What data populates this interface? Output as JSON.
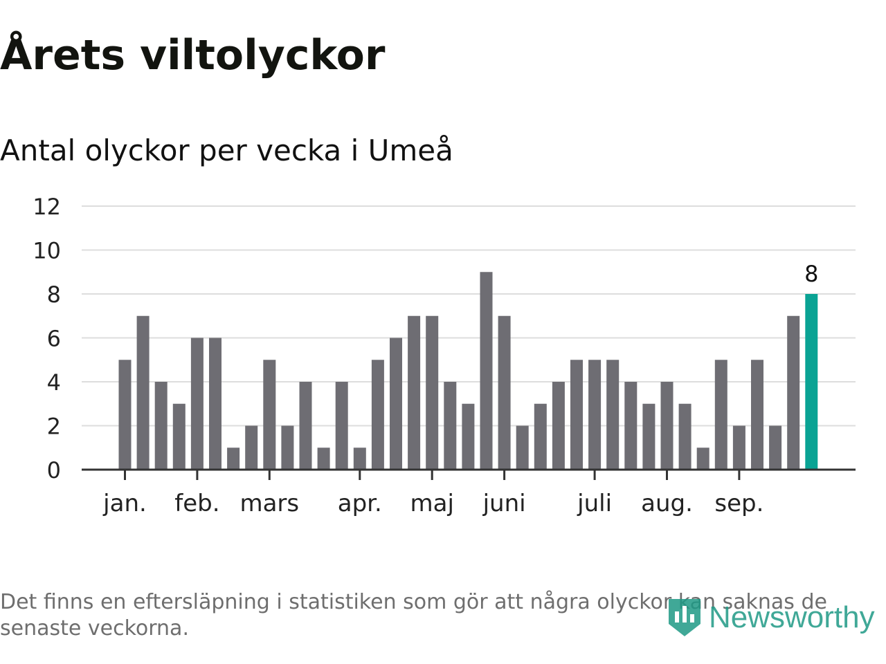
{
  "title": "Årets viltolyckor",
  "subtitle": "Antal olyckor per vecka i Umeå",
  "footnote": "Det finns en eftersläpning i statistiken som gör att några olyckor kan saknas de senaste veckorna.",
  "brand": {
    "name": "Newsworthy",
    "icon": "newsworthy-logo-icon"
  },
  "colors": {
    "bar": "#6e6d73",
    "highlight": "#0aa394",
    "grid": "#dddddd",
    "axis": "#333333",
    "brand": "#1f9a86"
  },
  "chart_data": {
    "type": "bar",
    "values": [
      5,
      7,
      4,
      3,
      6,
      6,
      1,
      2,
      5,
      2,
      4,
      1,
      4,
      1,
      5,
      6,
      7,
      7,
      4,
      3,
      9,
      7,
      2,
      3,
      4,
      5,
      5,
      5,
      4,
      3,
      4,
      3,
      1,
      5,
      2,
      5,
      2,
      7,
      8
    ],
    "highlight_index": 38,
    "highlight_label": "8",
    "x_ticks": [
      {
        "label": "jan.",
        "bar": 0
      },
      {
        "label": "feb.",
        "bar": 4
      },
      {
        "label": "mars",
        "bar": 8
      },
      {
        "label": "apr.",
        "bar": 13
      },
      {
        "label": "maj",
        "bar": 17
      },
      {
        "label": "juni",
        "bar": 21
      },
      {
        "label": "juli",
        "bar": 26
      },
      {
        "label": "aug.",
        "bar": 30
      },
      {
        "label": "sep.",
        "bar": 34
      }
    ],
    "y_ticks": [
      0,
      2,
      4,
      6,
      8,
      10,
      12
    ],
    "ylim": [
      0,
      12
    ],
    "grid": true,
    "legend": "none"
  }
}
